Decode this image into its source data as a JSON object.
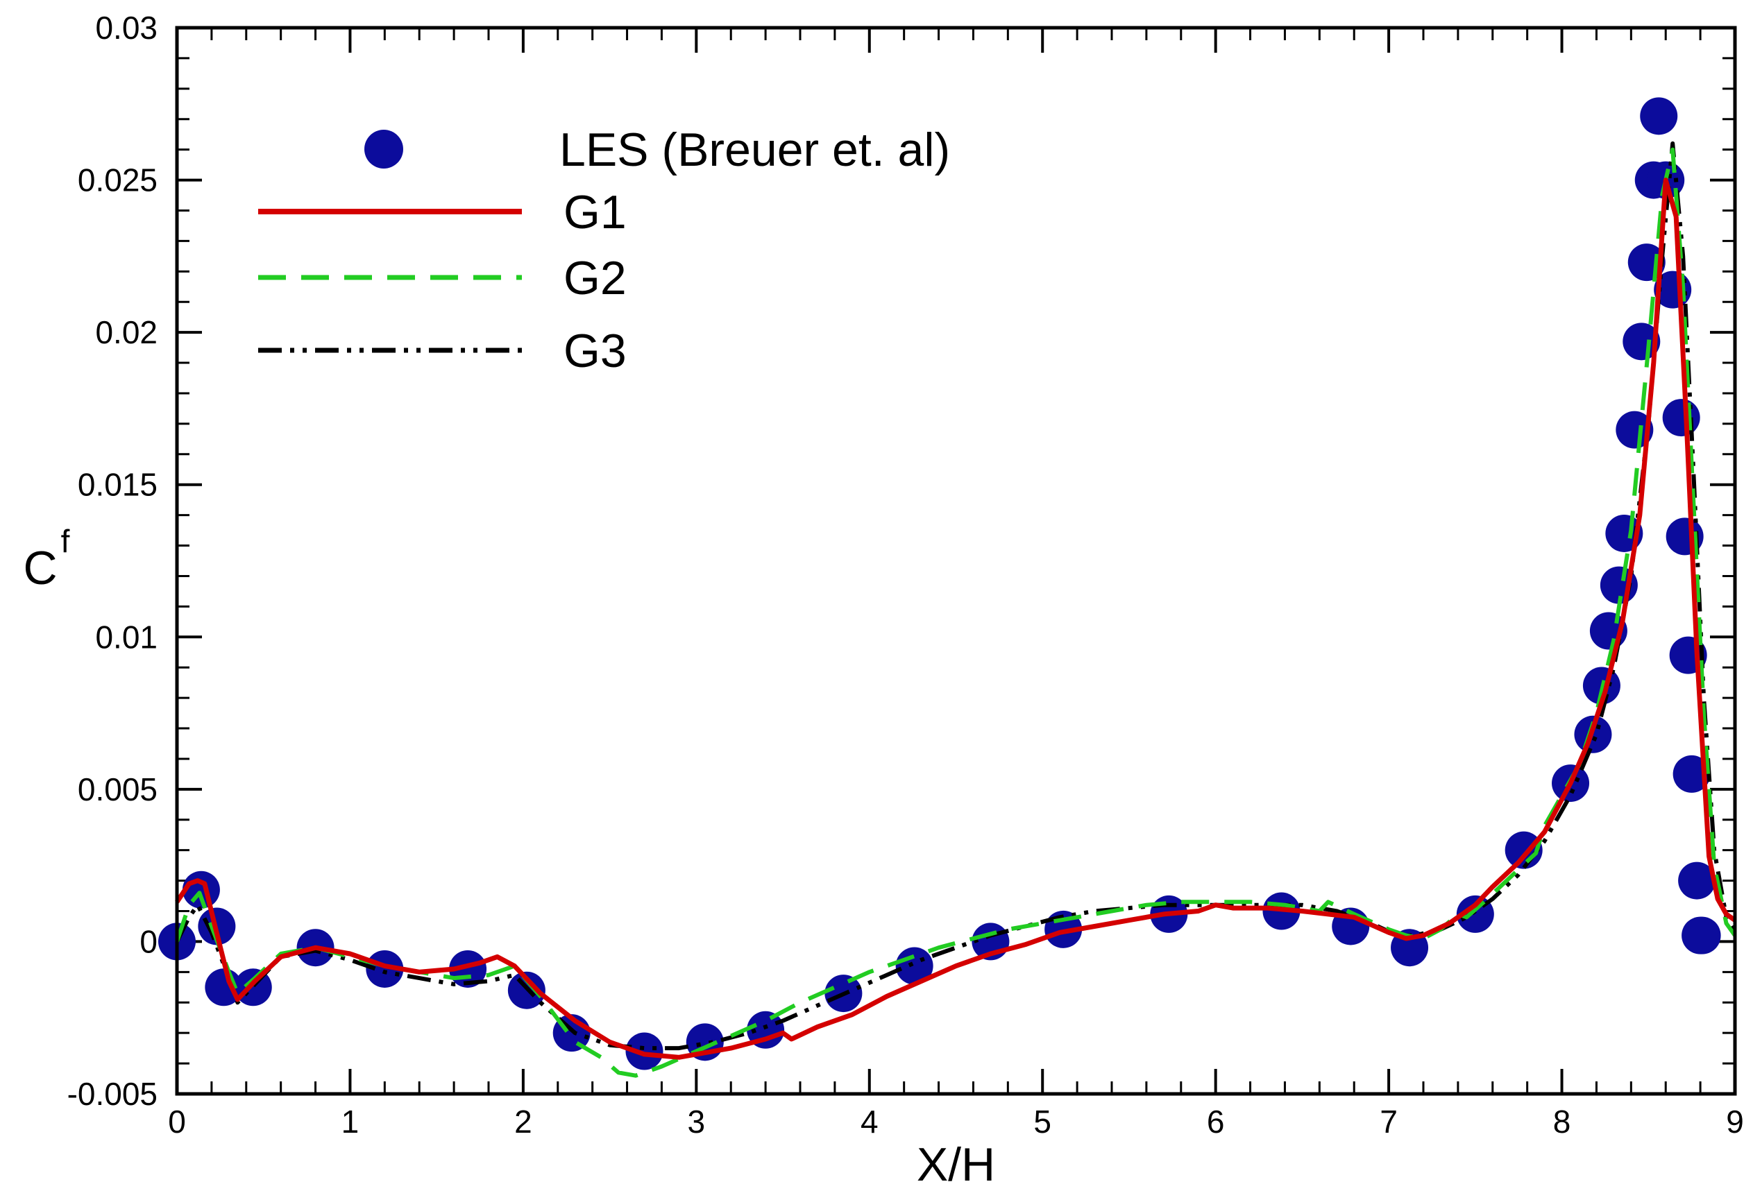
{
  "chart_data": {
    "type": "line",
    "xlabel": "X/H",
    "ylabel": "C",
    "ylabel_sub": "f",
    "xlim": [
      0,
      9
    ],
    "ylim": [
      -0.005,
      0.03
    ],
    "xticks": [
      0,
      1,
      2,
      3,
      4,
      5,
      6,
      7,
      8,
      9
    ],
    "yticks": [
      -0.005,
      0,
      0.005,
      0.01,
      0.015,
      0.02,
      0.025,
      0.03
    ],
    "xtick_labels": [
      "0",
      "1",
      "2",
      "3",
      "4",
      "5",
      "6",
      "7",
      "8",
      "9"
    ],
    "ytick_labels": [
      "-0.005",
      "0",
      "0.005",
      "0.01",
      "0.015",
      "0.02",
      "0.025",
      "0.03"
    ],
    "grid": false,
    "legend_position": "top-left",
    "series": [
      {
        "name": "LES (Breuer et. al)",
        "style": "markers",
        "color": "#0c0c9c",
        "x": [
          0.0,
          0.14,
          0.23,
          0.27,
          0.44,
          0.8,
          1.2,
          1.68,
          2.02,
          2.28,
          2.7,
          3.05,
          3.4,
          3.85,
          4.26,
          4.7,
          5.12,
          5.73,
          6.38,
          6.78,
          7.12,
          7.5,
          7.78,
          8.05,
          8.18,
          8.23,
          8.27,
          8.33,
          8.36,
          8.42,
          8.46,
          8.49,
          8.53,
          8.56,
          8.6,
          8.64,
          8.69,
          8.71,
          8.73,
          8.75,
          8.78,
          8.8,
          8.81
        ],
        "y": [
          0.0,
          0.0017,
          0.0005,
          -0.0015,
          -0.0015,
          -0.0002,
          -0.0009,
          -0.0009,
          -0.0016,
          -0.003,
          -0.0036,
          -0.0033,
          -0.0029,
          -0.0017,
          -0.0008,
          0.0,
          0.0004,
          0.0009,
          0.001,
          0.0005,
          -0.0002,
          0.0009,
          0.003,
          0.0052,
          0.0068,
          0.0084,
          0.0102,
          0.0117,
          0.0134,
          0.0168,
          0.0197,
          0.0223,
          0.025,
          0.0271,
          0.025,
          0.0214,
          0.0172,
          0.0133,
          0.0094,
          0.0055,
          0.002,
          0.0002,
          0.0002
        ]
      },
      {
        "name": "G1",
        "style": "solid",
        "color": "#d40000",
        "x": [
          0.0,
          0.07,
          0.12,
          0.16,
          0.22,
          0.3,
          0.35,
          0.45,
          0.6,
          0.8,
          1.0,
          1.2,
          1.4,
          1.6,
          1.75,
          1.85,
          1.95,
          2.1,
          2.3,
          2.5,
          2.7,
          2.9,
          3.0,
          3.2,
          3.4,
          3.5,
          3.55,
          3.7,
          3.9,
          4.1,
          4.3,
          4.5,
          4.7,
          4.9,
          5.1,
          5.3,
          5.5,
          5.7,
          5.9,
          6.0,
          6.1,
          6.3,
          6.5,
          6.8,
          7.0,
          7.1,
          7.2,
          7.35,
          7.5,
          7.6,
          7.75,
          7.9,
          8.05,
          8.15,
          8.25,
          8.35,
          8.45,
          8.53,
          8.6,
          8.66,
          8.72,
          8.78,
          8.85,
          8.9,
          8.95,
          9.0
        ],
        "y": [
          0.0013,
          0.0019,
          0.002,
          0.0019,
          0.0005,
          -0.0013,
          -0.0019,
          -0.0013,
          -0.0005,
          -0.0002,
          -0.0004,
          -0.0008,
          -0.001,
          -0.0009,
          -0.0007,
          -0.0005,
          -0.0008,
          -0.0017,
          -0.0026,
          -0.0033,
          -0.0037,
          -0.0038,
          -0.0037,
          -0.0035,
          -0.0032,
          -0.003,
          -0.0032,
          -0.0028,
          -0.0024,
          -0.0018,
          -0.0013,
          -0.0008,
          -0.0004,
          -0.0001,
          0.0003,
          0.0005,
          0.0007,
          0.0009,
          0.001,
          0.0012,
          0.0011,
          0.0011,
          0.001,
          0.0008,
          0.0003,
          0.0001,
          0.0002,
          0.0006,
          0.0012,
          0.0018,
          0.0026,
          0.0036,
          0.0052,
          0.0065,
          0.0082,
          0.0105,
          0.014,
          0.019,
          0.025,
          0.0238,
          0.017,
          0.0095,
          0.0028,
          0.0014,
          0.0009,
          0.0007
        ]
      },
      {
        "name": "G2",
        "style": "dashed",
        "color": "#22cc22",
        "x": [
          0.0,
          0.07,
          0.13,
          0.2,
          0.3,
          0.35,
          0.45,
          0.6,
          0.8,
          1.0,
          1.2,
          1.4,
          1.6,
          1.8,
          1.95,
          2.1,
          2.3,
          2.45,
          2.55,
          2.65,
          2.8,
          3.0,
          3.2,
          3.4,
          3.6,
          3.8,
          4.0,
          4.2,
          4.4,
          4.6,
          4.8,
          5.0,
          5.2,
          5.4,
          5.6,
          5.8,
          6.0,
          6.2,
          6.4,
          6.6,
          6.65,
          6.8,
          7.0,
          7.1,
          7.2,
          7.3,
          7.4,
          7.45,
          7.55,
          7.7,
          7.85,
          7.9,
          8.0,
          8.1,
          8.2,
          8.3,
          8.4,
          8.5,
          8.58,
          8.64,
          8.7,
          8.76,
          8.82,
          8.88,
          8.95,
          9.0
        ],
        "y": [
          0.0,
          0.0012,
          0.0016,
          0.0005,
          -0.001,
          -0.0017,
          -0.0012,
          -0.0004,
          -0.0002,
          -0.0005,
          -0.0008,
          -0.001,
          -0.0012,
          -0.0011,
          -0.0008,
          -0.0018,
          -0.0033,
          -0.0038,
          -0.0043,
          -0.0044,
          -0.0041,
          -0.0036,
          -0.0031,
          -0.0026,
          -0.002,
          -0.0015,
          -0.001,
          -0.0006,
          -0.0002,
          0.0001,
          0.0004,
          0.0006,
          0.0008,
          0.001,
          0.0012,
          0.0013,
          0.0013,
          0.0013,
          0.0012,
          0.001,
          0.0013,
          0.0009,
          0.0004,
          0.0002,
          0.0001,
          0.0004,
          0.0009,
          0.0008,
          0.0013,
          0.0021,
          0.0029,
          0.0038,
          0.0048,
          0.0058,
          0.0075,
          0.0099,
          0.0135,
          0.0195,
          0.0245,
          0.026,
          0.0215,
          0.0145,
          0.0075,
          0.0025,
          0.0006,
          0.0002
        ]
      },
      {
        "name": "G3",
        "style": "dash-dot-dot",
        "color": "#000000",
        "x": [
          0.0,
          0.07,
          0.12,
          0.2,
          0.3,
          0.35,
          0.45,
          0.6,
          0.8,
          1.0,
          1.2,
          1.4,
          1.6,
          1.8,
          1.95,
          2.1,
          2.3,
          2.5,
          2.7,
          2.9,
          3.1,
          3.3,
          3.5,
          3.7,
          3.9,
          4.1,
          4.3,
          4.5,
          4.7,
          4.9,
          5.1,
          5.3,
          5.5,
          5.7,
          5.9,
          6.1,
          6.3,
          6.5,
          6.7,
          6.9,
          7.05,
          7.15,
          7.3,
          7.45,
          7.6,
          7.75,
          7.9,
          8.05,
          8.2,
          8.3,
          8.4,
          8.5,
          8.58,
          8.64,
          8.7,
          8.76,
          8.82,
          8.88,
          8.95,
          9.0
        ],
        "y": [
          0.0,
          0.0008,
          0.0012,
          0.0003,
          -0.0012,
          -0.002,
          -0.0014,
          -0.0005,
          -0.0003,
          -0.0006,
          -0.001,
          -0.0012,
          -0.0014,
          -0.0013,
          -0.0011,
          -0.002,
          -0.003,
          -0.0034,
          -0.0035,
          -0.0035,
          -0.0033,
          -0.003,
          -0.0026,
          -0.0021,
          -0.0016,
          -0.0011,
          -0.0006,
          -0.0002,
          0.0002,
          0.0005,
          0.0008,
          0.001,
          0.0011,
          0.0012,
          0.0012,
          0.0012,
          0.0012,
          0.0012,
          0.001,
          0.0006,
          0.0002,
          0.0002,
          0.0004,
          0.0008,
          0.0014,
          0.0022,
          0.0033,
          0.0048,
          0.0068,
          0.009,
          0.012,
          0.017,
          0.0225,
          0.0262,
          0.0225,
          0.0155,
          0.008,
          0.003,
          0.0008,
          0.0003
        ]
      }
    ]
  }
}
